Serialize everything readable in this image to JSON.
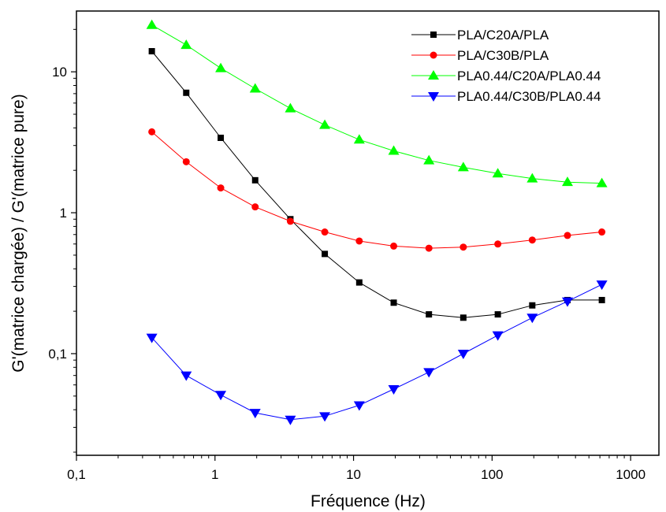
{
  "chart_data": {
    "type": "line",
    "xlabel": "Fréquence (Hz)",
    "ylabel": "G'(matrice chargée) / G'(matrice pure)",
    "x_scale": "log",
    "y_scale": "log",
    "xlim": [
      0.1,
      1600
    ],
    "ylim": [
      0.019,
      27
    ],
    "x_ticks": [
      {
        "value": 0.1,
        "label": "0,1"
      },
      {
        "value": 1,
        "label": "1"
      },
      {
        "value": 10,
        "label": "10"
      },
      {
        "value": 100,
        "label": "100"
      },
      {
        "value": 1000,
        "label": "1000"
      }
    ],
    "y_ticks": [
      {
        "value": 0.1,
        "label": "0,1"
      },
      {
        "value": 1,
        "label": "1"
      },
      {
        "value": 10,
        "label": "10"
      }
    ],
    "legend_position": "top-right",
    "x": [
      0.35,
      0.62,
      1.1,
      1.95,
      3.5,
      6.2,
      11,
      19.5,
      35,
      62,
      110,
      195,
      350,
      620
    ],
    "series": [
      {
        "name": "PLA/C20A/PLA",
        "color": "#000000",
        "marker": "square",
        "values": [
          14,
          7.1,
          3.4,
          1.7,
          0.9,
          0.51,
          0.32,
          0.23,
          0.19,
          0.18,
          0.19,
          0.22,
          0.24,
          0.24
        ]
      },
      {
        "name": "PLA/C30B/PLA",
        "color": "#ff0000",
        "marker": "circle",
        "values": [
          3.75,
          2.3,
          1.5,
          1.1,
          0.87,
          0.73,
          0.63,
          0.58,
          0.56,
          0.57,
          0.6,
          0.64,
          0.69,
          0.73
        ]
      },
      {
        "name": "PLA0.44/C20A/PLA0.44",
        "color": "#00ff00",
        "marker": "triangle-up",
        "values": [
          21.5,
          15.5,
          10.6,
          7.6,
          5.5,
          4.2,
          3.3,
          2.75,
          2.35,
          2.1,
          1.9,
          1.75,
          1.65,
          1.62
        ]
      },
      {
        "name": "PLA0.44/C30B/PLA0.44",
        "color": "#0000ff",
        "marker": "triangle-down",
        "values": [
          0.13,
          0.07,
          0.051,
          0.038,
          0.034,
          0.036,
          0.043,
          0.056,
          0.074,
          0.1,
          0.135,
          0.18,
          0.235,
          0.31
        ]
      }
    ]
  }
}
